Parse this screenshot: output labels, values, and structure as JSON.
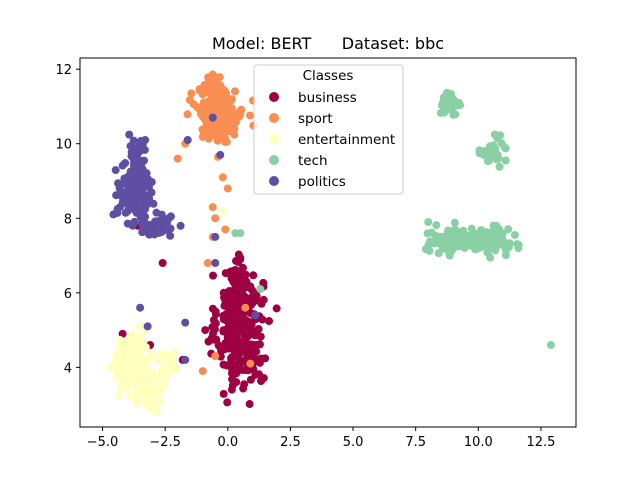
{
  "chart_data": {
    "type": "scatter",
    "title": "Model: BERT      Dataset: bbc",
    "xlabel": "",
    "ylabel": "",
    "xlim": [
      -5.9,
      13.9
    ],
    "ylim": [
      2.4,
      12.3
    ],
    "x_ticks": [
      -5.0,
      -2.5,
      0.0,
      2.5,
      5.0,
      7.5,
      10.0,
      12.5
    ],
    "x_tick_labels": [
      "−5.0",
      "−2.5",
      "0.0",
      "2.5",
      "5.0",
      "7.5",
      "10.0",
      "12.5"
    ],
    "y_ticks": [
      4,
      6,
      8,
      10,
      12
    ],
    "y_tick_labels": [
      "4",
      "6",
      "8",
      "10",
      "12"
    ],
    "grid": false,
    "legend": {
      "title": "Classes",
      "placement": "top-center",
      "entries": [
        "business",
        "sport",
        "entertainment",
        "tech",
        "politics"
      ]
    },
    "colors": {
      "business": "#9e0142",
      "sport": "#f98e52",
      "entertainment": "#ffffbe",
      "tech": "#89d0a4",
      "politics": "#5e4fa2"
    },
    "series": [
      {
        "name": "business",
        "clusters": [
          {
            "cx": 0.5,
            "cy": 5.0,
            "sx": 0.45,
            "sy": 0.75,
            "n": 320
          },
          {
            "cx": 0.3,
            "cy": 6.2,
            "sx": 0.25,
            "sy": 0.35,
            "n": 40
          }
        ],
        "points": [
          [
            -3.6,
            7.8
          ],
          [
            -2.6,
            6.8
          ],
          [
            -4.2,
            4.9
          ],
          [
            -3.1,
            4.6
          ],
          [
            -0.9,
            5.0
          ],
          [
            1.3,
            6.1
          ],
          [
            -1.8,
            4.2
          ],
          [
            1.1,
            3.8
          ]
        ]
      },
      {
        "name": "sport",
        "clusters": [
          {
            "cx": -0.3,
            "cy": 10.8,
            "sx": 0.45,
            "sy": 0.35,
            "n": 230
          },
          {
            "cx": -0.5,
            "cy": 11.5,
            "sx": 0.2,
            "sy": 0.15,
            "n": 25
          }
        ],
        "points": [
          [
            -2.0,
            9.6
          ],
          [
            -1.7,
            10.0
          ],
          [
            -0.6,
            8.3
          ],
          [
            -0.5,
            8.0
          ],
          [
            -0.1,
            7.7
          ],
          [
            -0.6,
            7.5
          ],
          [
            0.0,
            8.8
          ],
          [
            -0.2,
            9.1
          ],
          [
            -0.8,
            6.8
          ],
          [
            -1.0,
            3.9
          ],
          [
            -0.5,
            4.3
          ],
          [
            0.9,
            4.1
          ],
          [
            0.7,
            5.6
          ]
        ]
      },
      {
        "name": "entertainment",
        "clusters": [
          {
            "cx": -3.8,
            "cy": 4.1,
            "sx": 0.35,
            "sy": 0.35,
            "n": 160
          },
          {
            "cx": -3.2,
            "cy": 3.4,
            "sx": 0.3,
            "sy": 0.3,
            "n": 60
          },
          {
            "cx": -2.3,
            "cy": 4.1,
            "sx": 0.25,
            "sy": 0.2,
            "n": 25
          }
        ],
        "points": [
          [
            -3.5,
            5.1
          ],
          [
            -3.1,
            2.9
          ],
          [
            -4.7,
            4.0
          ],
          [
            -0.2,
            8.2
          ]
        ]
      },
      {
        "name": "tech",
        "clusters": [
          {
            "cx": 8.9,
            "cy": 7.4,
            "sx": 0.45,
            "sy": 0.17,
            "n": 90
          },
          {
            "cx": 10.3,
            "cy": 7.4,
            "sx": 0.45,
            "sy": 0.17,
            "n": 90
          },
          {
            "cx": 8.9,
            "cy": 11.1,
            "sx": 0.18,
            "sy": 0.12,
            "n": 40
          },
          {
            "cx": 10.6,
            "cy": 9.8,
            "sx": 0.25,
            "sy": 0.2,
            "n": 30
          }
        ],
        "points": [
          [
            11.6,
            7.2
          ],
          [
            12.9,
            4.6
          ],
          [
            0.3,
            7.6
          ],
          [
            0.5,
            7.6
          ],
          [
            1.3,
            6.1
          ],
          [
            8.0,
            7.9
          ]
        ]
      },
      {
        "name": "politics",
        "clusters": [
          {
            "cx": -3.7,
            "cy": 8.7,
            "sx": 0.35,
            "sy": 0.35,
            "n": 130
          },
          {
            "cx": -2.8,
            "cy": 7.8,
            "sx": 0.35,
            "sy": 0.15,
            "n": 45
          },
          {
            "cx": -3.6,
            "cy": 9.6,
            "sx": 0.2,
            "sy": 0.3,
            "n": 35
          }
        ],
        "points": [
          [
            -0.6,
            10.7
          ],
          [
            -1.6,
            10.1
          ],
          [
            -0.3,
            9.7
          ],
          [
            -0.5,
            7.5
          ],
          [
            -0.5,
            6.8
          ],
          [
            -3.5,
            5.6
          ],
          [
            -3.2,
            5.1
          ],
          [
            -1.7,
            5.2
          ],
          [
            -1.7,
            4.2
          ],
          [
            1.1,
            5.4
          ],
          [
            -3.3,
            10.1
          ],
          [
            -3.8,
            7.8
          ],
          [
            -4.3,
            8.3
          ]
        ]
      }
    ]
  }
}
